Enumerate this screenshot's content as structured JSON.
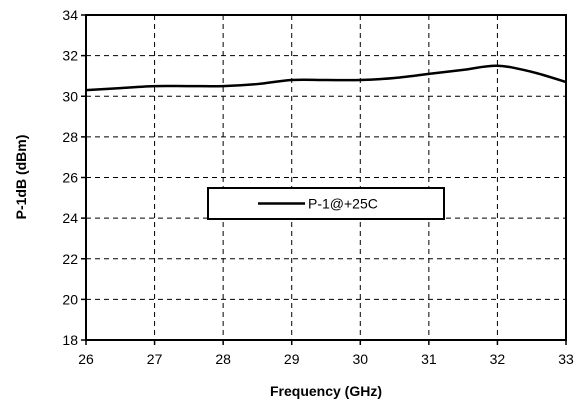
{
  "chart_data": {
    "type": "line",
    "title": "",
    "xlabel": "Frequency (GHz)",
    "ylabel": "P-1dB (dBm)",
    "xlim": [
      26,
      33
    ],
    "ylim": [
      18,
      34
    ],
    "xticks": [
      26,
      27,
      28,
      29,
      30,
      31,
      32,
      33
    ],
    "yticks": [
      18,
      20,
      22,
      24,
      26,
      28,
      30,
      32,
      34
    ],
    "grid": true,
    "legend_position": "center",
    "series": [
      {
        "name": "P-1@+25C",
        "color": "#000000",
        "x": [
          26,
          26.5,
          27,
          27.5,
          28,
          28.5,
          29,
          29.5,
          30,
          30.5,
          31,
          31.5,
          32,
          32.5,
          33
        ],
        "y": [
          30.3,
          30.4,
          30.5,
          30.5,
          30.5,
          30.6,
          30.8,
          30.8,
          30.8,
          30.9,
          31.1,
          31.3,
          31.5,
          31.2,
          30.7
        ]
      }
    ]
  }
}
